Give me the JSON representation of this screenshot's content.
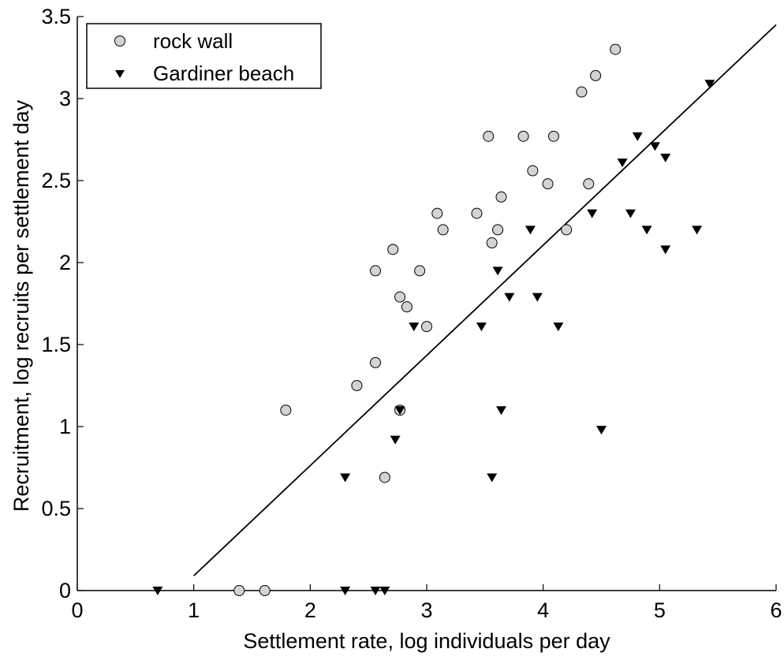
{
  "chart_data": {
    "type": "scatter",
    "xlabel": "Settlement rate, log individuals per day",
    "ylabel": "Recruitment, log recruits per settlement day",
    "xlim": [
      0,
      6
    ],
    "ylim": [
      0,
      3.5
    ],
    "xticks": [
      0,
      1,
      2,
      3,
      4,
      5,
      6
    ],
    "yticks": [
      0,
      0.5,
      1,
      1.5,
      2,
      2.5,
      3,
      3.5
    ],
    "xtick_labels": [
      "0",
      "1",
      "2",
      "3",
      "4",
      "5",
      "6"
    ],
    "ytick_labels": [
      "0",
      "0.5",
      "1",
      "1.5",
      "2",
      "2.5",
      "3",
      "3.5"
    ],
    "grid": false,
    "legend_position": "top-left",
    "series": [
      {
        "name": "rock wall",
        "marker": "circle",
        "color": "#d3d3d3",
        "edge_color": "#000000",
        "points": [
          [
            1.39,
            0.0
          ],
          [
            1.61,
            0.0
          ],
          [
            1.79,
            1.1
          ],
          [
            2.4,
            1.25
          ],
          [
            2.56,
            1.39
          ],
          [
            2.56,
            1.95
          ],
          [
            2.64,
            0.69
          ],
          [
            2.71,
            2.08
          ],
          [
            2.77,
            1.79
          ],
          [
            2.77,
            1.1
          ],
          [
            2.83,
            1.73
          ],
          [
            2.94,
            1.95
          ],
          [
            3.0,
            1.61
          ],
          [
            3.09,
            2.3
          ],
          [
            3.14,
            2.2
          ],
          [
            3.43,
            2.3
          ],
          [
            3.53,
            2.77
          ],
          [
            3.56,
            2.12
          ],
          [
            3.61,
            2.2
          ],
          [
            3.64,
            2.4
          ],
          [
            3.83,
            2.77
          ],
          [
            3.91,
            2.56
          ],
          [
            4.04,
            2.48
          ],
          [
            4.09,
            2.77
          ],
          [
            4.2,
            2.2
          ],
          [
            4.33,
            3.04
          ],
          [
            4.39,
            2.48
          ],
          [
            4.45,
            3.14
          ],
          [
            4.62,
            3.3
          ]
        ]
      },
      {
        "name": "Gardiner beach",
        "marker": "triangle-down",
        "color": "#000000",
        "points": [
          [
            0.69,
            0.0
          ],
          [
            2.3,
            0.0
          ],
          [
            2.56,
            0.0
          ],
          [
            2.64,
            0.0
          ],
          [
            2.3,
            0.69
          ],
          [
            2.77,
            1.1
          ],
          [
            2.73,
            0.92
          ],
          [
            2.89,
            1.61
          ],
          [
            3.47,
            1.61
          ],
          [
            3.56,
            0.69
          ],
          [
            3.61,
            1.95
          ],
          [
            3.64,
            1.1
          ],
          [
            3.71,
            1.79
          ],
          [
            3.89,
            2.2
          ],
          [
            3.95,
            1.79
          ],
          [
            4.13,
            1.61
          ],
          [
            4.42,
            2.3
          ],
          [
            4.5,
            0.98
          ],
          [
            4.68,
            2.61
          ],
          [
            4.75,
            2.3
          ],
          [
            4.81,
            2.77
          ],
          [
            4.89,
            2.2
          ],
          [
            4.96,
            2.71
          ],
          [
            5.05,
            2.64
          ],
          [
            5.05,
            2.08
          ],
          [
            5.32,
            2.2
          ],
          [
            5.43,
            3.09
          ]
        ]
      }
    ],
    "fit_line": {
      "x": [
        1.0,
        6.0
      ],
      "y": [
        0.09,
        3.45
      ],
      "color": "#000000"
    }
  }
}
